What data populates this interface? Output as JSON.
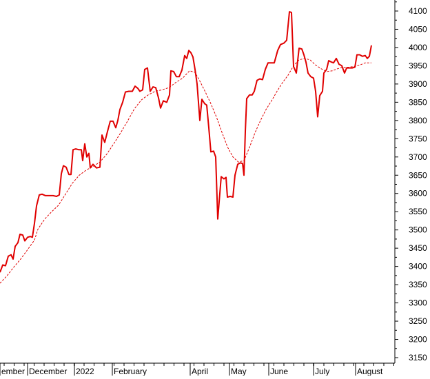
{
  "chart_data": {
    "type": "line",
    "title": "",
    "xlabel": "",
    "ylabel": "",
    "ylim": [
      3125,
      4125
    ],
    "y_ticks": [
      3150,
      3200,
      3250,
      3300,
      3350,
      3400,
      3450,
      3500,
      3550,
      3600,
      3650,
      3700,
      3750,
      3800,
      3850,
      3900,
      3950,
      4000,
      4050,
      4100
    ],
    "y_tick_labels": [
      "3150",
      "3200",
      "3250",
      "3300",
      "3350",
      "3400",
      "3450",
      "3500",
      "3550",
      "3600",
      "3650",
      "3700",
      "3750",
      "3800",
      "3850",
      "3900",
      "3950",
      "4000",
      "4050",
      "4100"
    ],
    "x_labels": [
      {
        "label": "ember",
        "x": 0
      },
      {
        "label": "December",
        "x": 40
      },
      {
        "label": "2022",
        "x": 108
      },
      {
        "label": "February",
        "x": 163
      },
      {
        "label": "April",
        "x": 276
      },
      {
        "label": "May",
        "x": 333
      },
      {
        "label": "June",
        "x": 390
      },
      {
        "label": "July",
        "x": 455
      },
      {
        "label": "August",
        "x": 516
      }
    ],
    "x_range": [
      0,
      570
    ],
    "grid": false,
    "y_axis_position": "right",
    "colors": {
      "price": "#e00000",
      "average": "#e00000",
      "axis": "#000000"
    },
    "series": [
      {
        "style": "solid",
        "points": [
          [
            0,
            3384
          ],
          [
            4,
            3404
          ],
          [
            8,
            3402
          ],
          [
            12,
            3428
          ],
          [
            16,
            3432
          ],
          [
            19,
            3420
          ],
          [
            22,
            3455
          ],
          [
            26,
            3465
          ],
          [
            29,
            3488
          ],
          [
            33,
            3486
          ],
          [
            36,
            3470
          ],
          [
            40,
            3480
          ],
          [
            44,
            3482
          ],
          [
            47,
            3480
          ],
          [
            50,
            3518
          ],
          [
            53,
            3566
          ],
          [
            57,
            3596
          ],
          [
            61,
            3598
          ],
          [
            66,
            3594
          ],
          [
            71,
            3594
          ],
          [
            77,
            3594
          ],
          [
            82,
            3592
          ],
          [
            86,
            3596
          ],
          [
            89,
            3654
          ],
          [
            92,
            3676
          ],
          [
            96,
            3672
          ],
          [
            100,
            3652
          ],
          [
            103,
            3652
          ],
          [
            106,
            3720
          ],
          [
            110,
            3722
          ],
          [
            114,
            3720
          ],
          [
            118,
            3720
          ],
          [
            120,
            3690
          ],
          [
            123,
            3736
          ],
          [
            126,
            3700
          ],
          [
            129,
            3710
          ],
          [
            131,
            3670
          ],
          [
            135,
            3680
          ],
          [
            140,
            3670
          ],
          [
            145,
            3672
          ],
          [
            148,
            3760
          ],
          [
            152,
            3740
          ],
          [
            156,
            3770
          ],
          [
            160,
            3798
          ],
          [
            164,
            3798
          ],
          [
            168,
            3780
          ],
          [
            171,
            3800
          ],
          [
            174,
            3830
          ],
          [
            178,
            3850
          ],
          [
            182,
            3878
          ],
          [
            187,
            3880
          ],
          [
            192,
            3880
          ],
          [
            196,
            3894
          ],
          [
            200,
            3888
          ],
          [
            203,
            3880
          ],
          [
            207,
            3884
          ],
          [
            210,
            3940
          ],
          [
            214,
            3944
          ],
          [
            218,
            3880
          ],
          [
            222,
            3892
          ],
          [
            226,
            3890
          ],
          [
            230,
            3862
          ],
          [
            233,
            3834
          ],
          [
            237,
            3854
          ],
          [
            242,
            3850
          ],
          [
            246,
            3870
          ],
          [
            248,
            3936
          ],
          [
            252,
            3934
          ],
          [
            256,
            3920
          ],
          [
            260,
            3920
          ],
          [
            264,
            3938
          ],
          [
            268,
            3978
          ],
          [
            271,
            3970
          ],
          [
            274,
            3992
          ],
          [
            277,
            3986
          ],
          [
            280,
            3974
          ],
          [
            283,
            3940
          ],
          [
            286,
            3900
          ],
          [
            290,
            3800
          ],
          [
            293,
            3858
          ],
          [
            297,
            3846
          ],
          [
            300,
            3842
          ],
          [
            303,
            3780
          ],
          [
            306,
            3714
          ],
          [
            310,
            3716
          ],
          [
            313,
            3700
          ],
          [
            316,
            3530
          ],
          [
            319,
            3600
          ],
          [
            321,
            3646
          ],
          [
            325,
            3640
          ],
          [
            328,
            3644
          ],
          [
            330,
            3590
          ],
          [
            334,
            3592
          ],
          [
            338,
            3590
          ],
          [
            341,
            3650
          ],
          [
            345,
            3680
          ],
          [
            349,
            3684
          ],
          [
            352,
            3682
          ],
          [
            354,
            3650
          ],
          [
            356,
            3770
          ],
          [
            358,
            3860
          ],
          [
            362,
            3870
          ],
          [
            366,
            3870
          ],
          [
            369,
            3880
          ],
          [
            373,
            3910
          ],
          [
            377,
            3914
          ],
          [
            381,
            3912
          ],
          [
            385,
            3940
          ],
          [
            389,
            3958
          ],
          [
            394,
            3958
          ],
          [
            398,
            3958
          ],
          [
            403,
            3992
          ],
          [
            407,
            4008
          ],
          [
            412,
            4012
          ],
          [
            416,
            4020
          ],
          [
            420,
            4098
          ],
          [
            423,
            4096
          ],
          [
            426,
            3948
          ],
          [
            430,
            3930
          ],
          [
            434,
            3998
          ],
          [
            438,
            3996
          ],
          [
            441,
            3980
          ],
          [
            444,
            3960
          ],
          [
            447,
            3930
          ],
          [
            451,
            3920
          ],
          [
            455,
            3916
          ],
          [
            458,
            3880
          ],
          [
            461,
            3810
          ],
          [
            464,
            3868
          ],
          [
            468,
            3880
          ],
          [
            470,
            3930
          ],
          [
            474,
            3940
          ],
          [
            477,
            3964
          ],
          [
            481,
            3960
          ],
          [
            484,
            3958
          ],
          [
            488,
            3970
          ],
          [
            492,
            3954
          ],
          [
            496,
            3950
          ],
          [
            500,
            3930
          ],
          [
            503,
            3944
          ],
          [
            507,
            3944
          ],
          [
            511,
            3944
          ],
          [
            515,
            3946
          ],
          [
            518,
            3980
          ],
          [
            522,
            3980
          ],
          [
            526,
            3976
          ],
          [
            530,
            3978
          ],
          [
            533,
            3970
          ],
          [
            536,
            3976
          ],
          [
            539,
            4006
          ]
        ]
      },
      {
        "style": "dashed",
        "points": [
          [
            0,
            3354
          ],
          [
            10,
            3374
          ],
          [
            20,
            3398
          ],
          [
            30,
            3420
          ],
          [
            40,
            3446
          ],
          [
            50,
            3472
          ],
          [
            55,
            3502
          ],
          [
            65,
            3530
          ],
          [
            75,
            3550
          ],
          [
            85,
            3568
          ],
          [
            95,
            3598
          ],
          [
            105,
            3628
          ],
          [
            115,
            3650
          ],
          [
            125,
            3664
          ],
          [
            135,
            3674
          ],
          [
            145,
            3686
          ],
          [
            155,
            3708
          ],
          [
            165,
            3736
          ],
          [
            175,
            3766
          ],
          [
            185,
            3798
          ],
          [
            195,
            3832
          ],
          [
            205,
            3856
          ],
          [
            215,
            3870
          ],
          [
            225,
            3880
          ],
          [
            235,
            3884
          ],
          [
            245,
            3890
          ],
          [
            255,
            3904
          ],
          [
            265,
            3916
          ],
          [
            275,
            3936
          ],
          [
            283,
            3932
          ],
          [
            290,
            3908
          ],
          [
            298,
            3878
          ],
          [
            306,
            3846
          ],
          [
            314,
            3810
          ],
          [
            322,
            3768
          ],
          [
            330,
            3728
          ],
          [
            338,
            3700
          ],
          [
            346,
            3686
          ],
          [
            354,
            3690
          ],
          [
            362,
            3726
          ],
          [
            370,
            3766
          ],
          [
            378,
            3800
          ],
          [
            386,
            3830
          ],
          [
            394,
            3854
          ],
          [
            402,
            3880
          ],
          [
            410,
            3904
          ],
          [
            418,
            3924
          ],
          [
            426,
            3950
          ],
          [
            434,
            3966
          ],
          [
            442,
            3970
          ],
          [
            450,
            3966
          ],
          [
            458,
            3952
          ],
          [
            466,
            3942
          ],
          [
            474,
            3934
          ],
          [
            482,
            3936
          ],
          [
            490,
            3942
          ],
          [
            498,
            3946
          ],
          [
            506,
            3946
          ],
          [
            514,
            3948
          ],
          [
            522,
            3952
          ],
          [
            530,
            3958
          ],
          [
            539,
            3958
          ]
        ]
      }
    ]
  }
}
